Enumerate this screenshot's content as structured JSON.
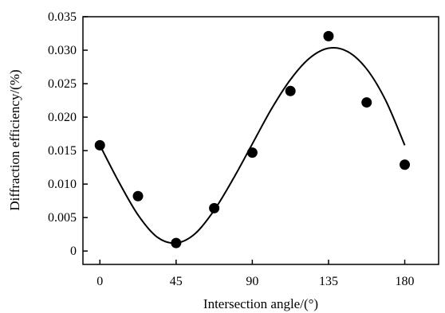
{
  "chart_data": {
    "type": "scatter",
    "title": "",
    "xlabel": "Intersection angle/(°)",
    "ylabel": "Diffraction efficiency/(%)",
    "xlim": [
      -10,
      200
    ],
    "ylim": [
      -0.002,
      0.035
    ],
    "x_ticks": [
      0,
      45,
      90,
      135,
      180
    ],
    "x_tick_labels": [
      "0",
      "45",
      "90",
      "135",
      "180"
    ],
    "y_ticks": [
      0,
      0.005,
      0.01,
      0.015,
      0.02,
      0.025,
      0.03,
      0.035
    ],
    "y_tick_labels": [
      "0",
      "0.005",
      "0.010",
      "0.015",
      "0.020",
      "0.025",
      "0.030",
      "0.035"
    ],
    "grid": false,
    "legend": "none",
    "series": [
      {
        "kind": "points",
        "x": [
          0,
          22.5,
          45,
          67.5,
          90,
          112.5,
          135,
          157.5,
          180
        ],
        "y": [
          0.0158,
          0.0082,
          0.0012,
          0.0064,
          0.0147,
          0.0239,
          0.0321,
          0.0222,
          0.0129
        ]
      },
      {
        "kind": "fit-curve",
        "x": [
          0,
          11.25,
          22.5,
          33.75,
          45,
          56.25,
          67.5,
          78.75,
          90,
          101.25,
          112.5,
          123.75,
          135,
          146.25,
          157.5,
          168.75,
          180
        ],
        "y": [
          0.0158,
          0.0103,
          0.0054,
          0.0021,
          0.0012,
          0.0026,
          0.0061,
          0.0108,
          0.016,
          0.0212,
          0.0256,
          0.0288,
          0.0303,
          0.0298,
          0.0272,
          0.0225,
          0.0158
        ]
      }
    ],
    "colors": {
      "marker": "#000000",
      "line": "#000000",
      "axis": "#000000"
    }
  }
}
